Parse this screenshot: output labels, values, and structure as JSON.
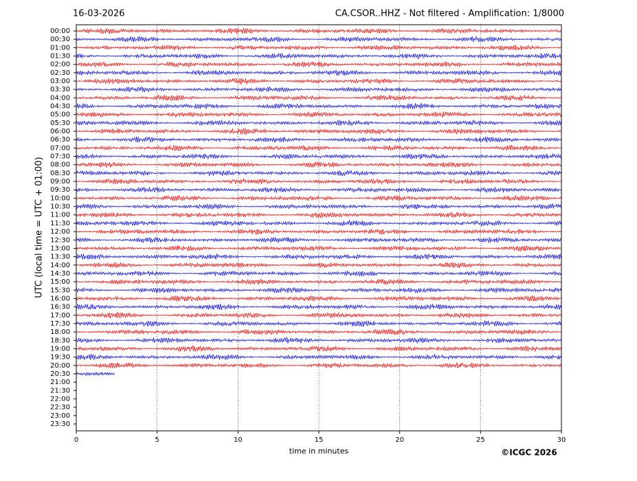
{
  "chart_data": {
    "type": "helicorder",
    "date": "16-03-2026",
    "title": "CA.CSOR..HHZ - Not filtered - Amplification: 1/8000",
    "y_label": "UTC (local time = UTC + 01:00)",
    "x_label": "time in minutes",
    "copyright": "©ICGC 2026",
    "categories": [
      "00:00",
      "00:30",
      "01:00",
      "01:30",
      "02:00",
      "02:30",
      "03:00",
      "03:30",
      "04:00",
      "04:30",
      "05:00",
      "05:30",
      "06:00",
      "06:30",
      "07:00",
      "07:30",
      "08:00",
      "08:30",
      "09:00",
      "09:30",
      "10:00",
      "10:30",
      "11:00",
      "11:30",
      "12:00",
      "12:30",
      "13:00",
      "13:30",
      "14:00",
      "14:30",
      "15:00",
      "15:30",
      "16:00",
      "16:30",
      "17:00",
      "17:30",
      "18:00",
      "18:30",
      "19:00",
      "19:30",
      "20:00",
      "20:30",
      "21:00",
      "21:30",
      "22:00",
      "22:30",
      "23:00",
      "23:30"
    ],
    "trace_end": [
      30,
      30,
      30,
      30,
      30,
      30,
      30,
      30,
      30,
      30,
      30,
      30,
      30,
      30,
      30,
      30,
      30,
      30,
      30,
      30,
      30,
      30,
      30,
      30,
      30,
      30,
      30,
      30,
      30,
      30,
      30,
      30,
      30,
      30,
      30,
      30,
      30,
      30,
      30,
      30,
      30,
      2.4
    ],
    "colors": [
      "#ff0000",
      "#0000ff"
    ],
    "xlim": [
      0,
      30
    ],
    "xticks": [
      0,
      5,
      10,
      15,
      20,
      25,
      30
    ],
    "grid": true
  }
}
